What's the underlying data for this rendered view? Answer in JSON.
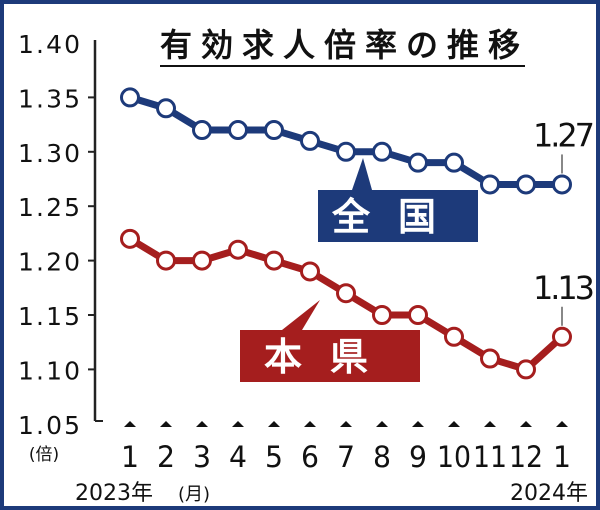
{
  "chart_data": {
    "type": "line",
    "title": "有効求人倍率の推移",
    "ylabel": "(倍)",
    "xlabel": "(月)",
    "ylim": [
      1.05,
      1.4
    ],
    "yticks": [
      "1.40",
      "1.35",
      "1.30",
      "1.25",
      "1.20",
      "1.15",
      "1.10",
      "1.05"
    ],
    "categories": [
      "1",
      "2",
      "3",
      "4",
      "5",
      "6",
      "7",
      "8",
      "9",
      "10",
      "11",
      "12",
      "1"
    ],
    "year_labels": {
      "start": "2023年",
      "end": "2024年"
    },
    "series": [
      {
        "name": "全国",
        "color": "#1d3a7a",
        "values": [
          1.35,
          1.34,
          1.32,
          1.32,
          1.32,
          1.31,
          1.3,
          1.3,
          1.29,
          1.29,
          1.27,
          1.27,
          1.27
        ],
        "end_label": "1.27"
      },
      {
        "name": "本県",
        "color": "#a51e1e",
        "values": [
          1.22,
          1.2,
          1.2,
          1.21,
          1.2,
          1.19,
          1.17,
          1.15,
          1.15,
          1.13,
          1.11,
          1.1,
          1.13
        ],
        "end_label": "1.13"
      }
    ]
  }
}
